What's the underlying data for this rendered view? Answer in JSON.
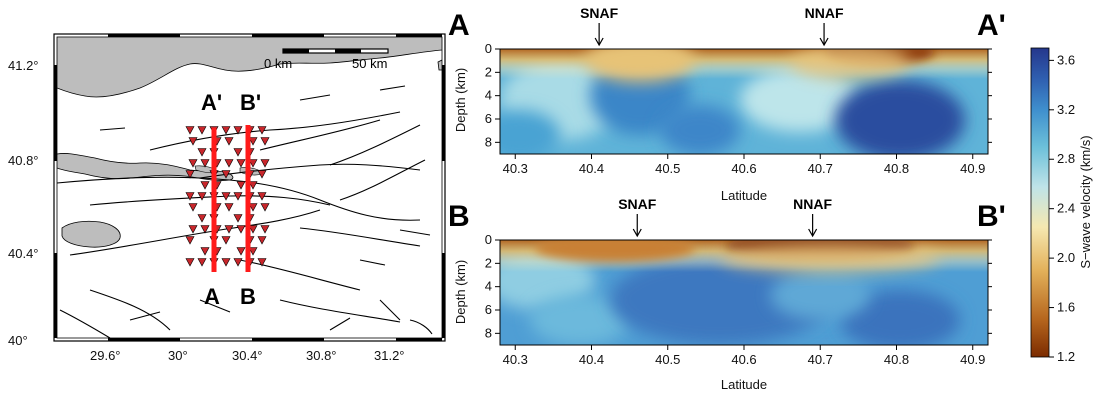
{
  "map": {
    "x_ticks": [
      "29.6°",
      "30°",
      "30.4°",
      "30.8°",
      "31.2°"
    ],
    "y_ticks": [
      "41.2°",
      "40.8°",
      "40.4°",
      "40°"
    ],
    "scale_labels": [
      "0 km",
      "50 km"
    ],
    "profile_labels": {
      "a_top": "A'",
      "a_bottom": "A",
      "b_top": "B'",
      "b_bottom": "B"
    },
    "colors": {
      "land_water": "#bdbdbd",
      "profile": "#ff1a1a",
      "station": "#c8262b"
    }
  },
  "chart_data": [
    {
      "type": "heatmap",
      "name": "profile-a",
      "start_label": "A",
      "end_label": "A'",
      "xlabel": "Latitude",
      "ylabel": "Depth (km)",
      "xlim": [
        40.28,
        40.92
      ],
      "ylim": [
        9,
        0
      ],
      "x_ticks": [
        "40.3",
        "40.4",
        "40.5",
        "40.6",
        "40.7",
        "40.8",
        "40.9"
      ],
      "y_ticks": [
        "0",
        "2",
        "4",
        "6",
        "8"
      ],
      "faults": [
        {
          "label": "SNAF",
          "lat": 40.41
        },
        {
          "label": "NNAF",
          "lat": 40.705
        }
      ]
    },
    {
      "type": "heatmap",
      "name": "profile-b",
      "start_label": "B",
      "end_label": "B'",
      "xlabel": "Latitude",
      "ylabel": "Depth (km)",
      "xlim": [
        40.28,
        40.92
      ],
      "ylim": [
        9,
        0
      ],
      "x_ticks": [
        "40.3",
        "40.4",
        "40.5",
        "40.6",
        "40.7",
        "40.8",
        "40.9"
      ],
      "y_ticks": [
        "0",
        "2",
        "4",
        "6",
        "8"
      ],
      "faults": [
        {
          "label": "SNAF",
          "lat": 40.46
        },
        {
          "label": "NNAF",
          "lat": 40.69
        }
      ]
    }
  ],
  "colorbar": {
    "label": "S−wave velocity (km/s)",
    "ticks": [
      "3.6",
      "3.2",
      "2.8",
      "2.4",
      "2.0",
      "1.6",
      "1.2"
    ],
    "range": [
      1.2,
      3.7
    ],
    "colors": [
      "#7b2b00",
      "#b5651d",
      "#e3b15a",
      "#f5e8b0",
      "#bfe3e8",
      "#6cc0da",
      "#3f8fcd",
      "#2f5fb0",
      "#25378c"
    ]
  }
}
